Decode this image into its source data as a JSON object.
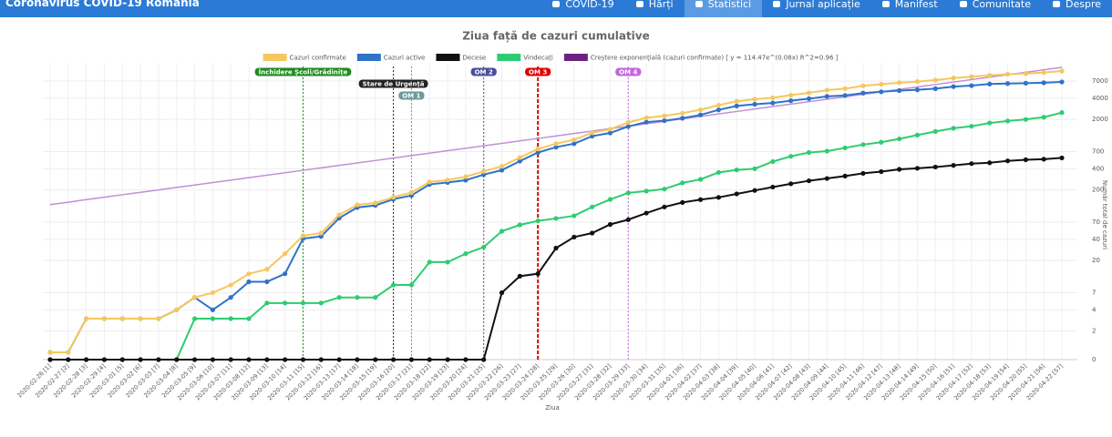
{
  "nav": {
    "brand": "Coronavirus COVID-19 România",
    "items": [
      "COVID-19",
      "Hărți",
      "Statistici",
      "Jurnal aplicație",
      "Manifest",
      "Comunitate",
      "Despre"
    ],
    "active": 2
  },
  "chart_data": {
    "type": "line",
    "title": "Ziua față de cazuri cumulative",
    "x_label": "Ziua",
    "y_label": "Număr total de cazuri",
    "log_scale": true,
    "grid": true,
    "ylim": [
      0,
      10000
    ],
    "yticks": [
      0,
      2,
      4,
      7,
      20,
      40,
      70,
      200,
      400,
      700,
      2000,
      4000,
      7000
    ],
    "categories": [
      "2020-02-26 [1]",
      "2020-02-27 [2]",
      "2020-02-28 [3]",
      "2020-02-29 [4]",
      "2020-03-01 [5]",
      "2020-03-02 [6]",
      "2020-03-03 [7]",
      "2020-03-04 [8]",
      "2020-03-05 [9]",
      "2020-03-06 [10]",
      "2020-03-07 [11]",
      "2020-03-08 [12]",
      "2020-03-09 [13]",
      "2020-03-10 [14]",
      "2020-03-11 [15]",
      "2020-03-12 [16]",
      "2020-03-13 [17]",
      "2020-03-14 [18]",
      "2020-03-15 [19]",
      "2020-03-16 [20]",
      "2020-03-17 [21]",
      "2020-03-18 [22]",
      "2020-03-19 [23]",
      "2020-03-20 [24]",
      "2020-03-21 [25]",
      "2020-03-22 [26]",
      "2020-03-23 [27]",
      "2020-03-24 [28]",
      "2020-03-25 [29]",
      "2020-03-26 [30]",
      "2020-03-27 [31]",
      "2020-03-28 [32]",
      "2020-03-29 [33]",
      "2020-03-30 [34]",
      "2020-03-31 [35]",
      "2020-04-01 [36]",
      "2020-04-02 [37]",
      "2020-04-03 [38]",
      "2020-04-04 [39]",
      "2020-04-05 [40]",
      "2020-04-06 [41]",
      "2020-04-07 [42]",
      "2020-04-08 [43]",
      "2020-04-09 [44]",
      "2020-04-10 [45]",
      "2020-04-11 [46]",
      "2020-04-12 [47]",
      "2020-04-13 [48]",
      "2020-04-14 [49]",
      "2020-04-15 [50]",
      "2020-04-16 [51]",
      "2020-04-17 [52]",
      "2020-04-18 [53]",
      "2020-04-19 [54]",
      "2020-04-20 [55]",
      "2020-04-21 [56]",
      "2020-04-22 [57]"
    ],
    "series": [
      {
        "name": "Cazuri confirmate",
        "color": "#f5c75e",
        "markers": true,
        "values": [
          1,
          1,
          3,
          3,
          3,
          3,
          3,
          4,
          6,
          7,
          9,
          13,
          15,
          25,
          45,
          49,
          89,
          123,
          131,
          158,
          184,
          260,
          277,
          308,
          367,
          433,
          576,
          762,
          906,
          1029,
          1292,
          1452,
          1815,
          2109,
          2245,
          2460,
          2738,
          3183,
          3613,
          3864,
          4057,
          4417,
          4761,
          5202,
          5467,
          5990,
          6300,
          6633,
          6879,
          7216,
          7707,
          8067,
          8418,
          8746,
          8936,
          9242,
          9710
        ]
      },
      {
        "name": "Cazuri active",
        "color": "#2f72c8",
        "markers": true,
        "values": [
          1,
          1,
          3,
          3,
          3,
          3,
          3,
          4,
          6,
          4,
          6,
          10,
          10,
          13,
          41,
          44,
          80,
          113,
          121,
          148,
          167,
          240,
          256,
          275,
          330,
          382,
          513,
          680,
          808,
          906,
          1159,
          1286,
          1589,
          1830,
          1919,
          2079,
          2319,
          2731,
          3106,
          3283,
          3417,
          3681,
          3935,
          4246,
          4367,
          4724,
          4930,
          5123,
          5262,
          5463,
          5838,
          6025,
          6350,
          6450,
          6520,
          6620,
          6800
        ]
      },
      {
        "name": "Decese",
        "color": "#111111",
        "markers": true,
        "values": [
          0,
          0,
          0,
          0,
          0,
          0,
          0,
          0,
          0,
          0,
          0,
          0,
          0,
          0,
          0,
          0,
          0,
          0,
          0,
          0,
          0,
          0,
          0,
          0,
          0,
          7,
          12,
          13,
          30,
          43,
          49,
          65,
          76,
          94,
          115,
          133,
          146,
          157,
          176,
          197,
          220,
          245,
          270,
          291,
          315,
          344,
          364,
          392,
          406,
          423,
          447,
          473,
          486,
          517,
          536,
          546,
          570
        ]
      },
      {
        "name": "Vindecați",
        "color": "#2ecc71",
        "markers": true,
        "values": [
          0,
          0,
          0,
          0,
          0,
          0,
          0,
          0,
          3,
          3,
          3,
          3,
          5,
          5,
          5,
          5,
          6,
          6,
          6,
          9,
          9,
          19,
          19,
          25,
          31,
          52,
          64,
          73,
          79,
          86,
          115,
          147,
          182,
          193,
          206,
          252,
          283,
          355,
          385,
          400,
          505,
          600,
          680,
          710,
          790,
          880,
          950,
          1060,
          1200,
          1350,
          1500,
          1600,
          1780,
          1900,
          2000,
          2150,
          2500
        ]
      },
      {
        "name": "Creștere exponențială (cazuri confirmate) [ y = 114.47e^(0.08x) R^2=0.96 ]",
        "color": "#c18fd6",
        "legend_color": "#6f2182",
        "markers": false,
        "values": [
          124,
          134,
          146,
          158,
          171,
          185,
          200,
          217,
          235,
          255,
          276,
          299,
          324,
          351,
          380,
          412,
          446,
          483,
          523,
          567,
          614,
          665,
          721,
          781,
          846,
          916,
          993,
          1075,
          1165,
          1262,
          1367,
          1481,
          1604,
          1738,
          1882,
          2039,
          2209,
          2393,
          2592,
          2808,
          3042,
          3296,
          3570,
          3867,
          4189,
          4538,
          4916,
          5326,
          5769,
          6250,
          6770,
          7334,
          7945,
          8607,
          9324,
          10100,
          10941
        ]
      }
    ],
    "annotations": [
      {
        "label": "Închidere Școli/Grădinițe",
        "x": "2020-03-11 [15]",
        "color": "#1f8a1f",
        "row": 0
      },
      {
        "label": "Stare de Urgență",
        "x": "2020-03-16 [20]",
        "color": "#222222",
        "row": 1
      },
      {
        "label": "OM 1",
        "x": "2020-03-17 [21]",
        "color": "#6d9a9a",
        "row": 2
      },
      {
        "label": "OM 2",
        "x": "2020-03-21 [25]",
        "color": "#4a4f9c",
        "row": 0
      },
      {
        "label": "OM 3",
        "x": "2020-03-24 [28]",
        "color": "#e00000",
        "row": 0
      },
      {
        "label": "OM 4",
        "x": "2020-03-29 [33]",
        "color": "#c266e0",
        "row": 0
      }
    ]
  }
}
